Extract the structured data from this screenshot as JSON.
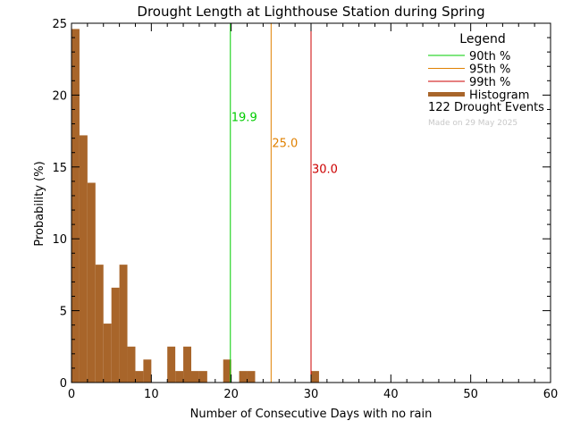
{
  "chart_data": {
    "type": "bar",
    "title": "Drought Length at Lighthouse Station during Spring",
    "xlabel": "Number of Consecutive Days with no rain",
    "ylabel": "Probability (%)",
    "xlim": [
      0,
      60
    ],
    "ylim": [
      0,
      25
    ],
    "xticks": [
      0,
      10,
      20,
      30,
      40,
      50,
      60
    ],
    "yticks": [
      0,
      5,
      10,
      15,
      20,
      25
    ],
    "grid": false,
    "bin_width": 1,
    "bin_start": 0,
    "values": [
      24.6,
      17.2,
      13.9,
      8.2,
      4.1,
      6.6,
      8.2,
      2.5,
      0.8,
      1.6,
      0,
      0,
      2.5,
      0.8,
      2.5,
      0.8,
      0.8,
      0,
      0,
      1.6,
      0,
      0.8,
      0.8,
      0,
      0,
      0,
      0,
      0,
      0,
      0,
      0.8,
      0,
      0,
      0,
      0,
      0,
      0,
      0,
      0,
      0,
      0,
      0,
      0,
      0,
      0,
      0,
      0,
      0,
      0,
      0,
      0,
      0,
      0,
      0,
      0,
      0,
      0,
      0,
      0,
      0
    ],
    "percentiles": [
      {
        "value": 19.9,
        "label": "19.9",
        "color": "#00cc00",
        "label_y": 18.5
      },
      {
        "value": 25.0,
        "label": "25.0",
        "color": "#e08000",
        "label_y": 16.7
      },
      {
        "value": 30.0,
        "label": "30.0",
        "color": "#cc0000",
        "label_y": 14.9
      }
    ],
    "bar_color": "#a8652a",
    "legend": {
      "position": "top-right",
      "title": "Legend",
      "items": [
        {
          "label": "90th %",
          "color": "#00cc00",
          "kind": "line"
        },
        {
          "label": "95th %",
          "color": "#e08000",
          "kind": "line"
        },
        {
          "label": "99th %",
          "color": "#cc0000",
          "kind": "line"
        },
        {
          "label": "Histogram",
          "color": "#a8652a",
          "kind": "thick"
        }
      ],
      "events": "122 Drought Events",
      "made_on": "Made on 29 May 2025"
    }
  }
}
